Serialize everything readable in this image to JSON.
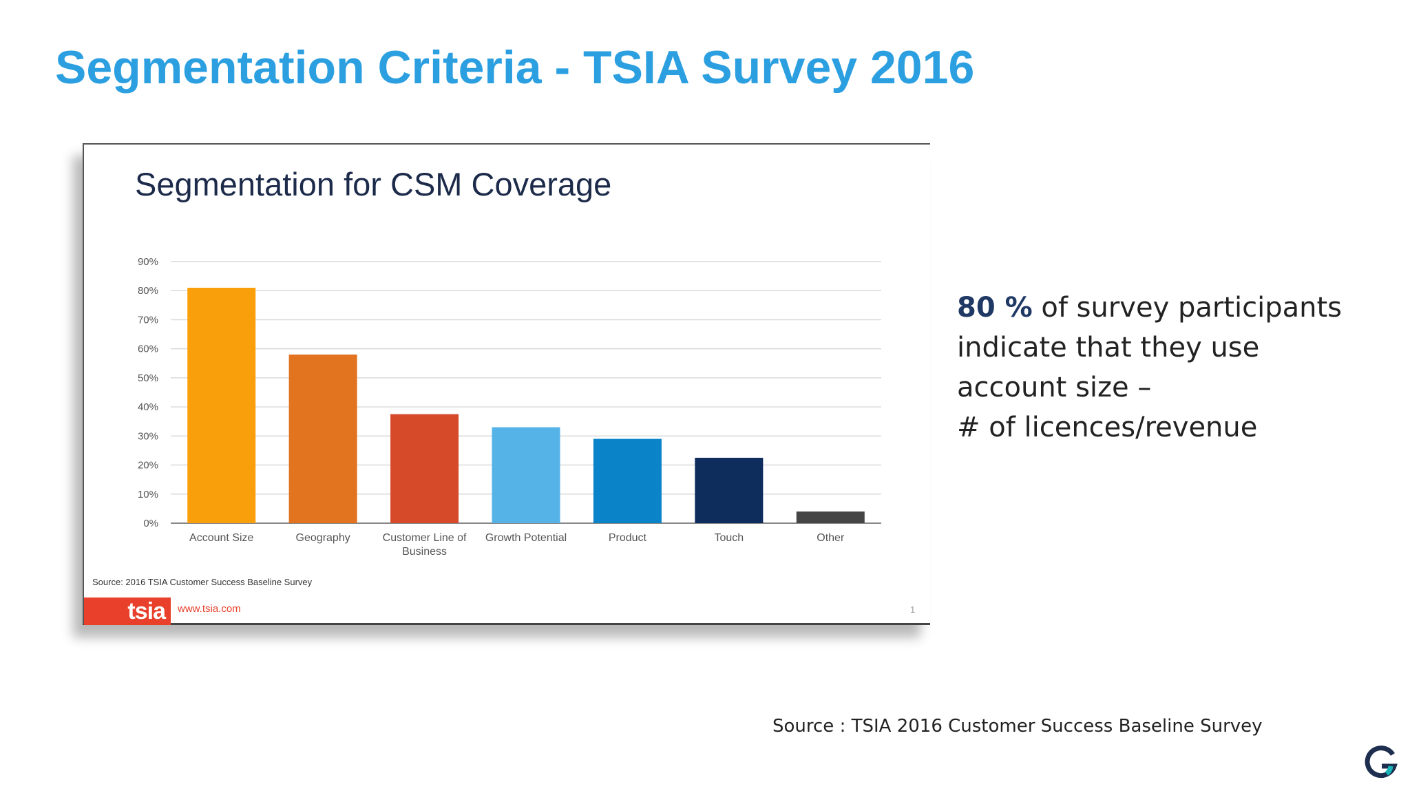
{
  "slide": {
    "title": "Segmentation Criteria - TSIA Survey 2016",
    "callout_highlight": "80 %",
    "callout_rest": " of survey participants indicate that they use account size –",
    "callout_line2": "# of licences/revenue",
    "source": "Source : TSIA 2016 Customer Success Baseline Survey",
    "brand_icon": "g-logo-icon"
  },
  "card": {
    "title": "Segmentation for CSM Coverage",
    "source": "Source: 2016 TSIA Customer Success Baseline Survey",
    "logo_text": "tsia",
    "url": "www.tsia.com",
    "page_number": "1"
  },
  "chart_data": {
    "type": "bar",
    "title": "Segmentation for CSM Coverage",
    "xlabel": "",
    "ylabel": "",
    "ylim": [
      0,
      90
    ],
    "y_ticks": [
      "0%",
      "10%",
      "20%",
      "30%",
      "40%",
      "50%",
      "60%",
      "70%",
      "80%",
      "90%"
    ],
    "grid": true,
    "categories": [
      [
        "Account Size"
      ],
      [
        "Geography"
      ],
      [
        "Customer Line of",
        "Business"
      ],
      [
        "Growth Potential"
      ],
      [
        "Product"
      ],
      [
        "Touch"
      ],
      [
        "Other"
      ]
    ],
    "values": [
      81,
      58,
      37.5,
      33,
      29,
      22.5,
      4
    ],
    "colors": [
      "#FA9F0C",
      "#E2731F",
      "#D64A2A",
      "#56B3E8",
      "#0A83C9",
      "#0E2C5C",
      "#454545"
    ]
  }
}
